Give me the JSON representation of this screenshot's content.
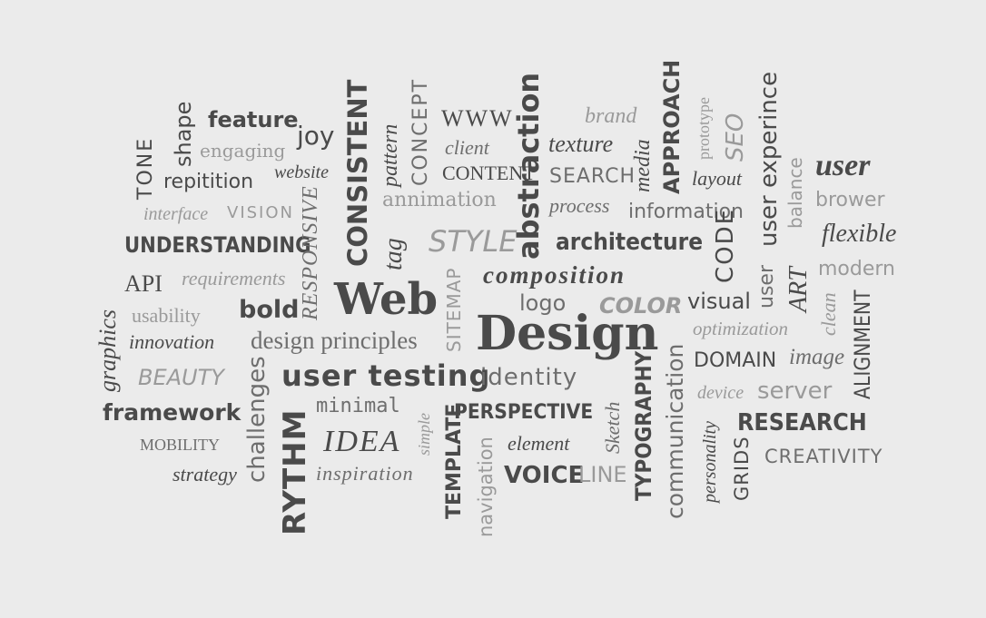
{
  "words": {
    "tone": "TONE",
    "shape": "shape",
    "feature": "feature",
    "engaging": "engaging",
    "joy": "joy",
    "repitition": "repitition",
    "website": "website",
    "consistent": "CONSISTENT",
    "pattern": "pattern",
    "concept": "CONCEPT",
    "www": "WWW",
    "client": "client",
    "content": "CONTENT",
    "annimation": "annimation",
    "abstraction": "abstraction",
    "brand": "brand",
    "texture": "texture",
    "search": "SEARCH",
    "process": "process",
    "media": "media",
    "approach": "APPROACH",
    "prototype": "prototype",
    "seo": "SEO",
    "layout": "layout",
    "information": "information",
    "user_experince": "user experince",
    "balance": "balance",
    "user": "user",
    "brower": "brower",
    "interface": "interface",
    "vision": "VISION",
    "responsive": "RESPONSIVE",
    "tag": "tag",
    "style": "STYLE",
    "understanding": "UNDERSTANDING",
    "architecture": "architecture",
    "code": "CODE",
    "flexible": "flexible",
    "graphics": "graphics",
    "api": "API",
    "requirements": "requirements",
    "composition": "composition",
    "modern": "modern",
    "web": "Web",
    "sitemap": "SITEMAP",
    "art": "ART",
    "usability": "usability",
    "bold": "bold",
    "logo": "logo",
    "color": "COLOR",
    "visual": "visual",
    "user_exp_vertical": "user",
    "clean": "clean",
    "alignment": "ALIGNMENT",
    "innovation": "innovation",
    "design_principles": "design principles",
    "design": "Design",
    "optimization": "optimization",
    "beauty": "BEAUTY",
    "user_testing": "user testing",
    "identity": "identity",
    "domain": "DOMAIN",
    "image": "image",
    "challenges": "challenges",
    "device": "device",
    "server": "server",
    "framework": "framework",
    "minimal": "minimal",
    "sketch": "Sketch",
    "perspective": "PERSPECTIVE",
    "typography": "TYPOGRAPHY",
    "communication": "communication",
    "research": "RESEARCH",
    "mobility": "MOBILITY",
    "idea": "IDEA",
    "simple": "simple",
    "element": "element",
    "personality": "personality",
    "rythm": "RYTHM",
    "template": "TEMPLATE",
    "grids": "GRIDS",
    "creativity": "CREATIVITY",
    "strategy": "strategy",
    "inspiration": "inspiration",
    "navigation": "navigation",
    "voice": "VOICE",
    "line": "LINE"
  },
  "colors": {
    "background": "#ebebeb",
    "dark": "#4a4a4a",
    "medium": "#6e6e6e",
    "light": "#9a9a9a"
  }
}
